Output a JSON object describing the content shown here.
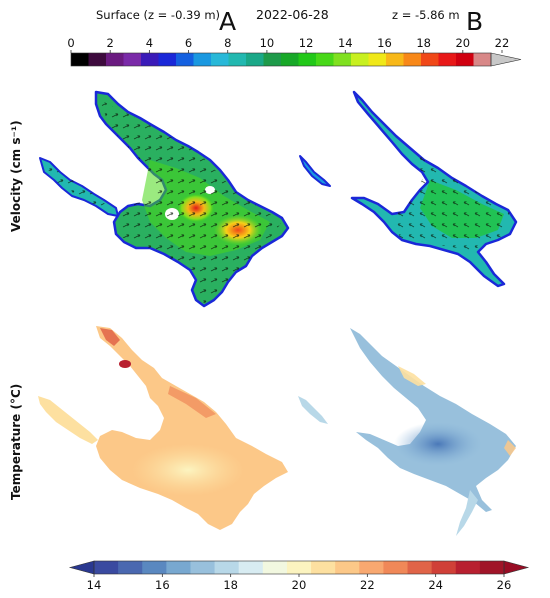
{
  "header": {
    "surface_label": "Surface  (z = -0.39 m)",
    "panel_a_letter": "A",
    "date": "2022-06-28",
    "depth_label": "z = -5.86 m",
    "panel_b_letter": "B"
  },
  "rows": {
    "velocity_label": "Velocity (cm s⁻¹)",
    "temperature_label": "Temperature (°C)"
  },
  "velocity_colorbar": {
    "ticks": [
      "0",
      "2",
      "4",
      "6",
      "8",
      "10",
      "12",
      "14",
      "16",
      "18",
      "20",
      "22"
    ],
    "colors": [
      "#000000",
      "#3d0a3d",
      "#6a1a80",
      "#7a2aa8",
      "#3a1ab8",
      "#1a28d8",
      "#1460e0",
      "#1a98e0",
      "#28b8d8",
      "#22b8b0",
      "#1aa888",
      "#1e9a4a",
      "#18a828",
      "#22c818",
      "#48d818",
      "#80e020",
      "#c8f020",
      "#f0e818",
      "#f8b818",
      "#f88818",
      "#f04818",
      "#e81818",
      "#d00010",
      "#d88888"
    ],
    "extend_color": "#c8c8c8"
  },
  "temperature_colorbar": {
    "ticks": [
      "14",
      "16",
      "18",
      "20",
      "22",
      "24",
      "26"
    ],
    "colors": [
      "#3a4aa0",
      "#4a68b0",
      "#5a88c0",
      "#78a8d0",
      "#98c0dc",
      "#b8d8e8",
      "#d8ecf2",
      "#f2f8e0",
      "#fcf4c0",
      "#fde0a0",
      "#fcc888",
      "#f8a870",
      "#f08858",
      "#e06448",
      "#d04038",
      "#b82030",
      "#a01428"
    ],
    "extend_low_color": "#2a3890",
    "extend_high_color": "#980c24"
  }
}
